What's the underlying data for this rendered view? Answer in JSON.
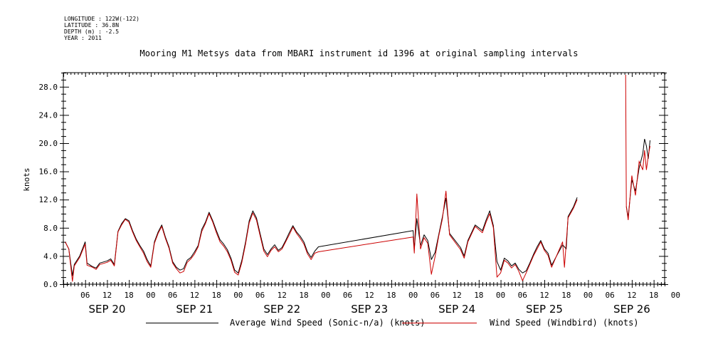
{
  "meta": {
    "lines": [
      "LONGITUDE : 122W(-122)",
      "LATITUDE : 36.8N",
      "DEPTH (m) : -2.5",
      "YEAR : 2011"
    ]
  },
  "chart_data": {
    "type": "line",
    "title": "Mooring M1 Metsys data from MBARI instrument id 1396 at original sampling intervals",
    "xlabel": "",
    "ylabel": "knots",
    "ylim": [
      0,
      30
    ],
    "yticks": [
      "0.0",
      "4.0",
      "8.0",
      "12.0",
      "16.0",
      "20.0",
      "24.0",
      "28.0"
    ],
    "xlim_hours": [
      0,
      165
    ],
    "x_origin": "SEP 20 00:00",
    "hour_ticks": [
      "06",
      "12",
      "18",
      "00",
      "06",
      "12",
      "18",
      "00",
      "06",
      "12",
      "18",
      "00",
      "06",
      "12",
      "18",
      "00",
      "06",
      "12",
      "18",
      "00",
      "06",
      "12",
      "18",
      "00",
      "06",
      "12",
      "18",
      "00"
    ],
    "day_labels": [
      "SEP 20",
      "SEP 21",
      "SEP 22",
      "SEP 23",
      "SEP 24",
      "SEP 25",
      "SEP 26"
    ],
    "legend_position": "bottom",
    "series": [
      {
        "name": "Average Wind Speed (Sonic-n/a) (knots)",
        "color": "#000000",
        "points": [
          [
            0.5,
            6.0
          ],
          [
            1.5,
            5.0
          ],
          [
            2.5,
            1.2
          ],
          [
            3.0,
            2.8
          ],
          [
            4.5,
            4.0
          ],
          [
            6.0,
            6.0
          ],
          [
            6.5,
            3.0
          ],
          [
            8,
            2.5
          ],
          [
            9,
            2.3
          ],
          [
            10,
            3.0
          ],
          [
            12,
            3.3
          ],
          [
            13,
            3.6
          ],
          [
            14,
            2.8
          ],
          [
            15,
            7.5
          ],
          [
            16,
            8.6
          ],
          [
            17,
            9.3
          ],
          [
            18,
            9.0
          ],
          [
            19,
            7.6
          ],
          [
            20,
            6.4
          ],
          [
            21,
            5.5
          ],
          [
            22,
            4.7
          ],
          [
            23,
            3.5
          ],
          [
            24,
            2.6
          ],
          [
            25,
            6.0
          ],
          [
            26,
            7.4
          ],
          [
            27,
            8.4
          ],
          [
            28,
            6.7
          ],
          [
            29,
            5.3
          ],
          [
            30,
            3.2
          ],
          [
            31,
            2.4
          ],
          [
            32,
            2.0
          ],
          [
            33,
            2.2
          ],
          [
            34,
            3.4
          ],
          [
            35,
            3.8
          ],
          [
            36,
            4.6
          ],
          [
            37,
            5.5
          ],
          [
            38,
            7.8
          ],
          [
            39,
            8.8
          ],
          [
            40,
            10.2
          ],
          [
            41,
            9.0
          ],
          [
            42,
            7.6
          ],
          [
            43,
            6.3
          ],
          [
            44,
            5.7
          ],
          [
            45,
            4.9
          ],
          [
            46,
            3.7
          ],
          [
            47,
            2.0
          ],
          [
            48,
            1.6
          ],
          [
            49,
            3.4
          ],
          [
            50,
            6.0
          ],
          [
            51,
            9.0
          ],
          [
            52,
            10.4
          ],
          [
            53,
            9.4
          ],
          [
            54,
            7.2
          ],
          [
            55,
            5.0
          ],
          [
            56,
            4.2
          ],
          [
            57,
            5.0
          ],
          [
            58,
            5.6
          ],
          [
            59,
            4.8
          ],
          [
            60,
            5.2
          ],
          [
            61,
            6.2
          ],
          [
            62,
            7.3
          ],
          [
            63,
            8.3
          ],
          [
            64,
            7.4
          ],
          [
            65,
            6.8
          ],
          [
            66,
            6.0
          ],
          [
            67,
            4.6
          ],
          [
            68,
            3.8
          ],
          [
            69,
            4.7
          ],
          [
            70,
            5.3
          ],
          [
            96,
            7.6
          ],
          [
            96.3,
            5.0
          ],
          [
            97,
            9.3
          ],
          [
            98,
            5.5
          ],
          [
            99,
            7.0
          ],
          [
            100,
            6.2
          ],
          [
            101,
            3.5
          ],
          [
            102,
            4.5
          ],
          [
            103,
            7.0
          ],
          [
            104,
            9.5
          ],
          [
            105,
            12.2
          ],
          [
            106,
            7.2
          ],
          [
            109,
            5.2
          ],
          [
            110,
            4.0
          ],
          [
            111,
            6.2
          ],
          [
            112,
            7.3
          ],
          [
            113,
            8.4
          ],
          [
            115,
            7.6
          ],
          [
            116,
            9.1
          ],
          [
            117,
            10.4
          ],
          [
            118,
            8.3
          ],
          [
            119,
            3.2
          ],
          [
            120,
            2.0
          ],
          [
            121,
            3.7
          ],
          [
            122,
            3.3
          ],
          [
            123,
            2.6
          ],
          [
            124,
            3.0
          ],
          [
            125,
            2.1
          ],
          [
            126,
            1.6
          ],
          [
            127,
            1.9
          ],
          [
            128,
            3.0
          ],
          [
            129,
            4.2
          ],
          [
            130,
            5.3
          ],
          [
            131,
            6.2
          ],
          [
            132,
            5.0
          ],
          [
            133,
            4.4
          ],
          [
            134,
            2.7
          ],
          [
            137,
            5.6
          ],
          [
            138,
            5.0
          ],
          [
            138.5,
            9.6
          ],
          [
            140,
            11.0
          ],
          [
            141,
            12.3
          ]
        ]
      },
      {
        "name": "Wind Speed (Windbird) (knots)",
        "color": "#cc0000",
        "points": [
          [
            0.5,
            6.0
          ],
          [
            1.5,
            5.0
          ],
          [
            2.5,
            0.4
          ],
          [
            3.0,
            2.6
          ],
          [
            4.5,
            3.8
          ],
          [
            6.0,
            5.7
          ],
          [
            6.5,
            2.7
          ],
          [
            8,
            2.4
          ],
          [
            9,
            2.1
          ],
          [
            10,
            2.8
          ],
          [
            12,
            3.1
          ],
          [
            13,
            3.4
          ],
          [
            14,
            2.6
          ],
          [
            15,
            7.4
          ],
          [
            16,
            8.4
          ],
          [
            17,
            9.2
          ],
          [
            18,
            8.8
          ],
          [
            19,
            7.4
          ],
          [
            20,
            6.2
          ],
          [
            21,
            5.3
          ],
          [
            22,
            4.4
          ],
          [
            23,
            3.2
          ],
          [
            24,
            2.4
          ],
          [
            25,
            5.8
          ],
          [
            26,
            7.2
          ],
          [
            27,
            8.2
          ],
          [
            28,
            6.5
          ],
          [
            29,
            5.1
          ],
          [
            30,
            3.0
          ],
          [
            31,
            2.2
          ],
          [
            32,
            1.6
          ],
          [
            33,
            1.8
          ],
          [
            34,
            3.1
          ],
          [
            35,
            3.6
          ],
          [
            36,
            4.3
          ],
          [
            37,
            5.3
          ],
          [
            38,
            7.5
          ],
          [
            39,
            8.6
          ],
          [
            40,
            10.0
          ],
          [
            41,
            8.8
          ],
          [
            42,
            7.3
          ],
          [
            43,
            6.0
          ],
          [
            44,
            5.4
          ],
          [
            45,
            4.6
          ],
          [
            46,
            3.4
          ],
          [
            47,
            1.7
          ],
          [
            48,
            1.3
          ],
          [
            49,
            3.1
          ],
          [
            50,
            5.7
          ],
          [
            51,
            8.7
          ],
          [
            52,
            10.1
          ],
          [
            53,
            9.1
          ],
          [
            54,
            6.9
          ],
          [
            55,
            4.7
          ],
          [
            56,
            3.9
          ],
          [
            57,
            4.8
          ],
          [
            58,
            5.3
          ],
          [
            59,
            4.6
          ],
          [
            60,
            5.0
          ],
          [
            61,
            6.0
          ],
          [
            62,
            7.0
          ],
          [
            63,
            8.1
          ],
          [
            64,
            7.2
          ],
          [
            65,
            6.5
          ],
          [
            66,
            5.7
          ],
          [
            67,
            4.3
          ],
          [
            68,
            3.5
          ],
          [
            69,
            4.4
          ],
          [
            70,
            4.6
          ],
          [
            96,
            6.7
          ],
          [
            96.3,
            4.4
          ],
          [
            97,
            12.8
          ],
          [
            98,
            5.0
          ],
          [
            99,
            6.6
          ],
          [
            100,
            5.8
          ],
          [
            101,
            1.4
          ],
          [
            102,
            3.9
          ],
          [
            103,
            6.8
          ],
          [
            104,
            9.2
          ],
          [
            105,
            13.2
          ],
          [
            106,
            7.0
          ],
          [
            109,
            4.9
          ],
          [
            110,
            3.7
          ],
          [
            111,
            6.0
          ],
          [
            112,
            7.1
          ],
          [
            113,
            8.2
          ],
          [
            115,
            7.3
          ],
          [
            116,
            8.8
          ],
          [
            117,
            10.0
          ],
          [
            118,
            8.0
          ],
          [
            119,
            1.0
          ],
          [
            120,
            1.6
          ],
          [
            121,
            3.4
          ],
          [
            122,
            3.0
          ],
          [
            123,
            2.3
          ],
          [
            124,
            2.8
          ],
          [
            125,
            1.8
          ],
          [
            126,
            0.5
          ],
          [
            127,
            1.6
          ],
          [
            128,
            2.8
          ],
          [
            129,
            4.0
          ],
          [
            130,
            5.0
          ],
          [
            131,
            6.0
          ],
          [
            132,
            4.8
          ],
          [
            133,
            4.1
          ],
          [
            134,
            2.4
          ],
          [
            137,
            6.0
          ],
          [
            137.5,
            2.4
          ],
          [
            138.5,
            9.4
          ],
          [
            140,
            10.8
          ],
          [
            141,
            12.0
          ]
        ]
      }
    ],
    "burst_segment": {
      "black": [
        [
          154.5,
          11.0
        ],
        [
          155,
          9.5
        ],
        [
          156,
          14.8
        ],
        [
          157,
          13.2
        ],
        [
          158,
          16.5
        ],
        [
          159,
          18.5
        ],
        [
          159.5,
          20.6
        ],
        [
          160,
          19.6
        ],
        [
          160.5,
          17.8
        ],
        [
          161,
          20.4
        ]
      ],
      "red": [
        [
          154.3,
          29.7
        ],
        [
          154.5,
          11.0
        ],
        [
          155,
          9.1
        ],
        [
          156,
          15.4
        ],
        [
          157,
          12.6
        ],
        [
          158,
          17.4
        ],
        [
          159,
          16.2
        ],
        [
          159.5,
          19.0
        ],
        [
          160,
          16.2
        ],
        [
          160.5,
          18.2
        ],
        [
          161,
          19.6
        ]
      ]
    }
  }
}
